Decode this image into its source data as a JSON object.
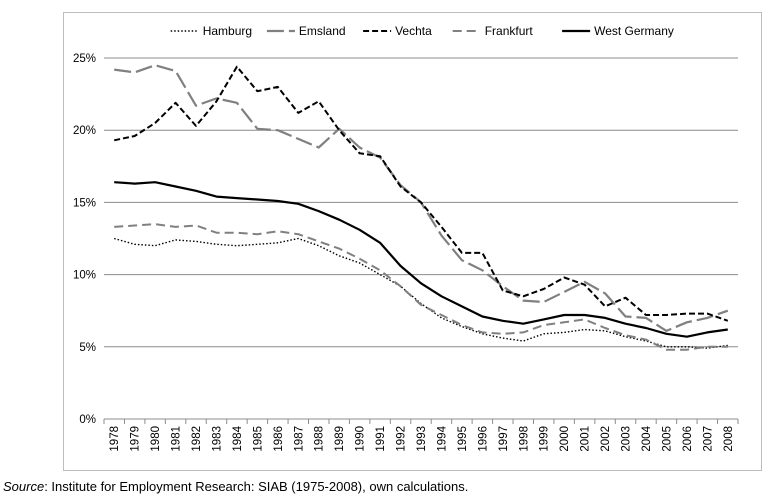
{
  "chart_data": {
    "type": "line",
    "x": [
      "1978",
      "1979",
      "1980",
      "1981",
      "1982",
      "1983",
      "1984",
      "1985",
      "1986",
      "1987",
      "1988",
      "1989",
      "1990",
      "1991",
      "1992",
      "1993",
      "1994",
      "1995",
      "1996",
      "1997",
      "1998",
      "1999",
      "2000",
      "2001",
      "2002",
      "2003",
      "2004",
      "2005",
      "2006",
      "2007",
      "2008"
    ],
    "y_ticks": [
      "0%",
      "5%",
      "10%",
      "15%",
      "20%",
      "25%"
    ],
    "ylim": [
      0,
      25
    ],
    "grid": "horizontal",
    "legend_position": "top",
    "series": [
      {
        "name": "Hamburg",
        "style": "dotted",
        "color": "#000000",
        "values": [
          12.5,
          12.1,
          12.0,
          12.4,
          12.3,
          12.1,
          12.0,
          12.1,
          12.2,
          12.5,
          12.0,
          11.3,
          10.8,
          10.0,
          9.2,
          8.0,
          7.0,
          6.4,
          5.9,
          5.6,
          5.4,
          5.9,
          6.0,
          6.2,
          6.1,
          5.7,
          5.4,
          5.0,
          5.0,
          4.9,
          5.1
        ]
      },
      {
        "name": "Emsland",
        "style": "longdash",
        "color": "#808080",
        "values": [
          24.2,
          24.0,
          24.5,
          24.1,
          21.7,
          22.2,
          21.9,
          20.1,
          20.0,
          19.4,
          18.8,
          20.1,
          18.8,
          18.1,
          16.2,
          15.0,
          12.7,
          11.0,
          10.3,
          9.2,
          8.2,
          8.1,
          8.8,
          9.5,
          8.7,
          7.1,
          7.0,
          6.1,
          6.7,
          7.0,
          7.5
        ]
      },
      {
        "name": "Vechta",
        "style": "dashed",
        "color": "#000000",
        "values": [
          19.3,
          19.6,
          20.5,
          21.9,
          20.3,
          22.0,
          24.4,
          22.7,
          23.0,
          21.2,
          22.0,
          20.0,
          18.4,
          18.2,
          16.1,
          15.0,
          13.3,
          11.5,
          11.5,
          8.9,
          8.5,
          9.0,
          9.8,
          9.3,
          7.8,
          8.4,
          7.2,
          7.2,
          7.3,
          7.3,
          6.8
        ]
      },
      {
        "name": "Frankfurt",
        "style": "shortdash",
        "color": "#808080",
        "values": [
          13.3,
          13.4,
          13.5,
          13.3,
          13.4,
          12.9,
          12.9,
          12.8,
          13.0,
          12.8,
          12.3,
          11.8,
          11.1,
          10.3,
          9.2,
          7.9,
          7.2,
          6.5,
          6.0,
          5.9,
          6.0,
          6.5,
          6.7,
          6.9,
          6.3,
          5.8,
          5.5,
          4.8,
          4.8,
          5.0,
          5.0
        ]
      },
      {
        "name": "West Germany",
        "style": "solid",
        "color": "#000000",
        "values": [
          16.4,
          16.3,
          16.4,
          16.1,
          15.8,
          15.4,
          15.3,
          15.2,
          15.1,
          14.9,
          14.4,
          13.8,
          13.1,
          12.2,
          10.6,
          9.4,
          8.5,
          7.8,
          7.1,
          6.8,
          6.6,
          6.9,
          7.2,
          7.2,
          7.0,
          6.6,
          6.3,
          5.9,
          5.7,
          6.0,
          6.2
        ]
      }
    ]
  },
  "source": {
    "label": "Source",
    "text": ":   Institute for Employment Research: SIAB (1975-2008), own calculations."
  }
}
